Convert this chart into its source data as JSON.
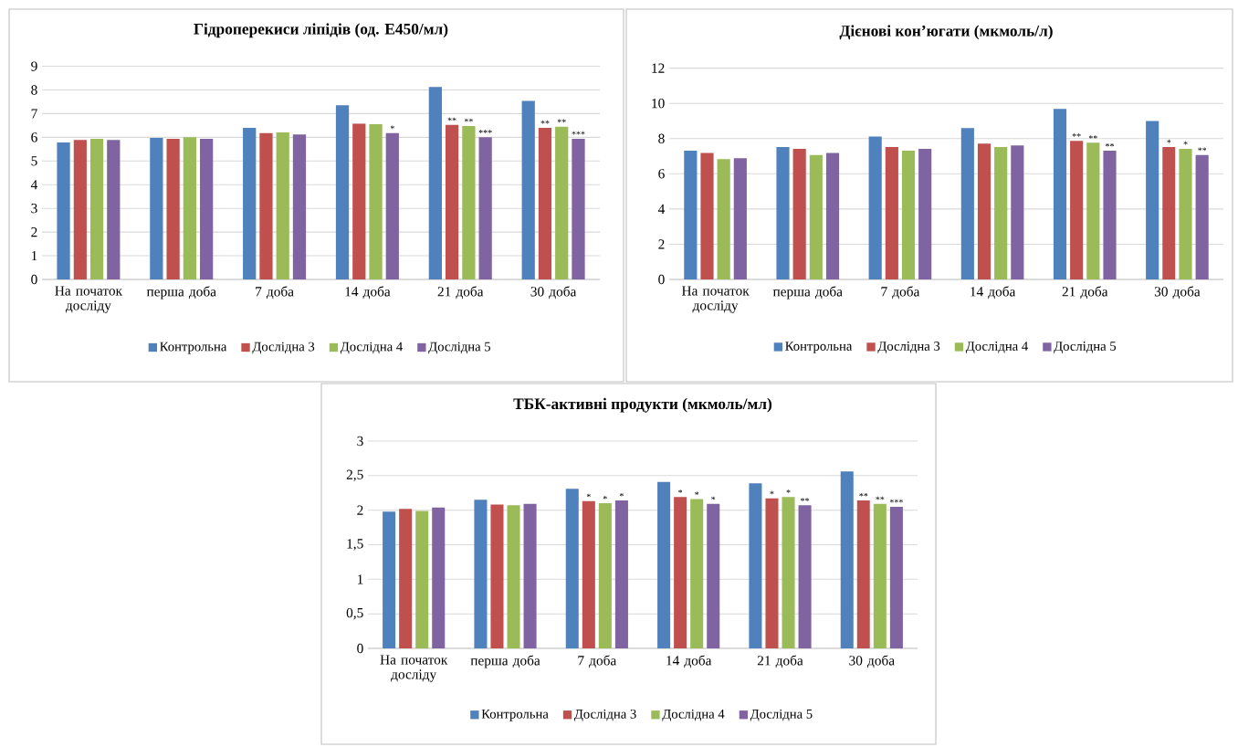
{
  "chart_data": [
    {
      "type": "bar",
      "title": "Гідроперекиси ліпідів (од. Е450/мл)",
      "categories": [
        "На початок досліду",
        "перша доба",
        "7 доба",
        "14 доба",
        "21 доба",
        "30 доба"
      ],
      "series": [
        {
          "name": "Контрольна",
          "color": "#4f81bd",
          "values": [
            5.78,
            5.97,
            6.4,
            7.35,
            8.12,
            7.54
          ],
          "value_labels": [
            null,
            null,
            null,
            null,
            null,
            null
          ]
        },
        {
          "name": "Дослідна 3",
          "color": "#c0504d",
          "values": [
            5.89,
            5.94,
            6.18,
            6.58,
            6.52,
            6.4
          ],
          "value_labels": [
            null,
            null,
            null,
            null,
            "**",
            "**"
          ]
        },
        {
          "name": "Дослідна 4",
          "color": "#9bbb59",
          "values": [
            5.94,
            6.0,
            6.21,
            6.55,
            6.48,
            6.45
          ],
          "value_labels": [
            null,
            null,
            null,
            null,
            "**",
            "**"
          ]
        },
        {
          "name": "Дослідна 5",
          "color": "#8064a2",
          "values": [
            5.89,
            5.94,
            6.12,
            6.18,
            6.0,
            5.94
          ],
          "value_labels": [
            null,
            null,
            null,
            "*",
            "***",
            "***"
          ]
        }
      ],
      "ylim": [
        0,
        9
      ],
      "yticks": [
        0,
        1,
        2,
        3,
        4,
        5,
        6,
        7,
        8,
        9
      ],
      "grid": "y",
      "legend": "bottom"
    },
    {
      "type": "bar",
      "title": "Дієнові кон’югати  (мкмоль/л)",
      "categories": [
        "На початок досліду",
        "перша доба",
        "7 доба",
        "14 доба",
        "21 доба",
        "30 доба"
      ],
      "series": [
        {
          "name": "Контрольна",
          "color": "#4f81bd",
          "values": [
            7.31,
            7.52,
            8.11,
            8.6,
            9.69,
            9.0
          ],
          "value_labels": [
            null,
            null,
            null,
            null,
            null,
            null
          ]
        },
        {
          "name": "Дослідна 3",
          "color": "#c0504d",
          "values": [
            7.18,
            7.42,
            7.52,
            7.72,
            7.87,
            7.52
          ],
          "value_labels": [
            null,
            null,
            null,
            null,
            "**",
            "*"
          ]
        },
        {
          "name": "Дослідна 4",
          "color": "#9bbb59",
          "values": [
            6.83,
            7.07,
            7.31,
            7.52,
            7.76,
            7.42
          ],
          "value_labels": [
            null,
            null,
            null,
            null,
            "**",
            "*"
          ]
        },
        {
          "name": "Дослідна 5",
          "color": "#8064a2",
          "values": [
            6.88,
            7.18,
            7.42,
            7.61,
            7.31,
            7.07
          ],
          "value_labels": [
            null,
            null,
            null,
            null,
            "**",
            "**"
          ]
        }
      ],
      "ylim": [
        0,
        12
      ],
      "yticks": [
        0,
        2,
        4,
        6,
        8,
        10,
        12
      ],
      "grid": "y",
      "legend": "bottom"
    },
    {
      "type": "bar",
      "title": "ТБК-активні продукти (мкмоль/мл)",
      "categories": [
        "На початок досліду",
        "перша доба",
        "7 доба",
        "14 доба",
        "21 доба",
        "30 доба"
      ],
      "series": [
        {
          "name": "Контрольна",
          "color": "#4f81bd",
          "values": [
            1.98,
            2.15,
            2.31,
            2.41,
            2.39,
            2.56
          ],
          "value_labels": [
            null,
            null,
            null,
            null,
            null,
            null
          ]
        },
        {
          "name": "Дослідна 3",
          "color": "#c0504d",
          "values": [
            2.02,
            2.08,
            2.13,
            2.19,
            2.17,
            2.14
          ],
          "value_labels": [
            null,
            null,
            "*",
            "*",
            "*",
            "**"
          ]
        },
        {
          "name": "Дослідна 4",
          "color": "#9bbb59",
          "values": [
            1.99,
            2.07,
            2.1,
            2.16,
            2.19,
            2.09
          ],
          "value_labels": [
            null,
            null,
            "*",
            "*",
            "*",
            "**"
          ]
        },
        {
          "name": "Дослідна 5",
          "color": "#8064a2",
          "values": [
            2.04,
            2.09,
            2.14,
            2.09,
            2.07,
            2.05
          ],
          "value_labels": [
            null,
            null,
            "*",
            "*",
            "**",
            "***"
          ]
        }
      ],
      "ylim": [
        0,
        3
      ],
      "yticks": [
        0,
        {
          "value": 0.5,
          "label": "0,5"
        },
        1,
        {
          "value": 1.5,
          "label": "1,5"
        },
        2,
        {
          "value": 2.5,
          "label": "2,5"
        },
        3
      ],
      "grid": "y",
      "legend": "bottom"
    }
  ]
}
